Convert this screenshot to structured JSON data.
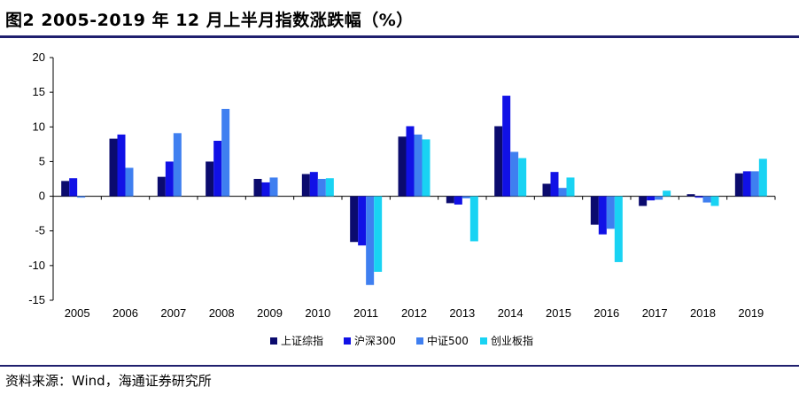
{
  "title": "图2  2005-2019 年 12 月上半月指数涨跌幅（%）",
  "source": "资料来源：Wind，海通证券研究所",
  "chart_data": {
    "type": "bar",
    "categories": [
      "2005",
      "2006",
      "2007",
      "2008",
      "2009",
      "2010",
      "2011",
      "2012",
      "2013",
      "2014",
      "2015",
      "2016",
      "2017",
      "2018",
      "2019"
    ],
    "ylim": [
      -15,
      20
    ],
    "yticks": [
      20,
      15,
      10,
      5,
      0,
      -5,
      -10,
      -15
    ],
    "grid": false,
    "legend_position": "bottom",
    "series": [
      {
        "name": "上证综指",
        "color": "#0b0b6e",
        "values": [
          2.2,
          8.3,
          2.8,
          5.0,
          2.5,
          3.2,
          -6.6,
          8.6,
          -1.0,
          10.1,
          1.8,
          -4.1,
          -1.4,
          0.3,
          3.3
        ]
      },
      {
        "name": "沪深300",
        "color": "#1111e6",
        "values": [
          2.6,
          8.9,
          5.0,
          8.0,
          2.0,
          3.5,
          -7.1,
          10.1,
          -1.2,
          14.5,
          3.5,
          -5.5,
          -0.6,
          -0.2,
          3.6
        ]
      },
      {
        "name": "中证500",
        "color": "#3f7ff0",
        "values": [
          -0.2,
          4.1,
          9.1,
          12.6,
          2.7,
          2.5,
          -12.8,
          8.9,
          -0.3,
          6.4,
          1.2,
          -4.7,
          -0.5,
          -0.9,
          3.6
        ]
      },
      {
        "name": "创业板指",
        "color": "#19d3f3",
        "values": [
          null,
          null,
          null,
          null,
          null,
          2.6,
          -10.9,
          8.2,
          -6.5,
          5.5,
          2.7,
          -9.5,
          0.8,
          -1.4,
          5.4
        ]
      }
    ]
  }
}
